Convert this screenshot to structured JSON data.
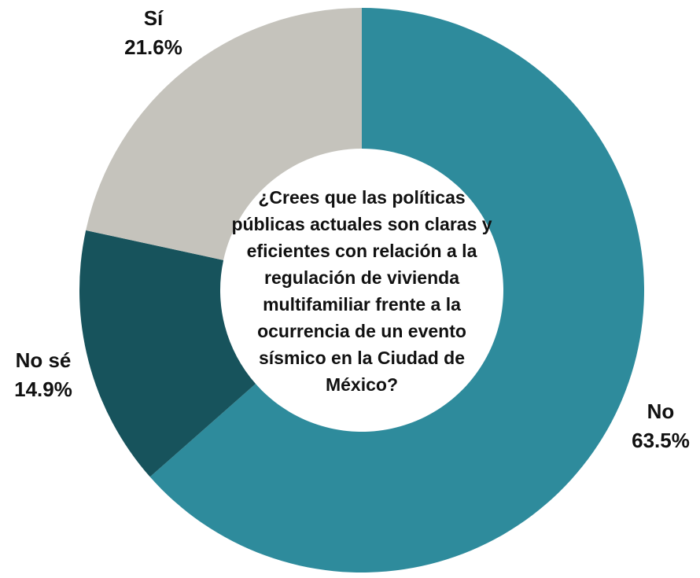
{
  "chart_data": {
    "type": "donut",
    "title": "¿Crees que las políticas públicas actuales son claras y eficientes con relación a la regulación de vivienda multifamiliar frente a la ocurrencia de un evento sísmico en la Ciudad de México?",
    "categories": [
      "No",
      "No sé",
      "Sí"
    ],
    "values": [
      63.5,
      14.9,
      21.6
    ],
    "value_labels": [
      "63.5%",
      "14.9%",
      "21.6%"
    ],
    "colors": [
      "#2e8b9c",
      "#17535c",
      "#c5c3bc"
    ]
  }
}
